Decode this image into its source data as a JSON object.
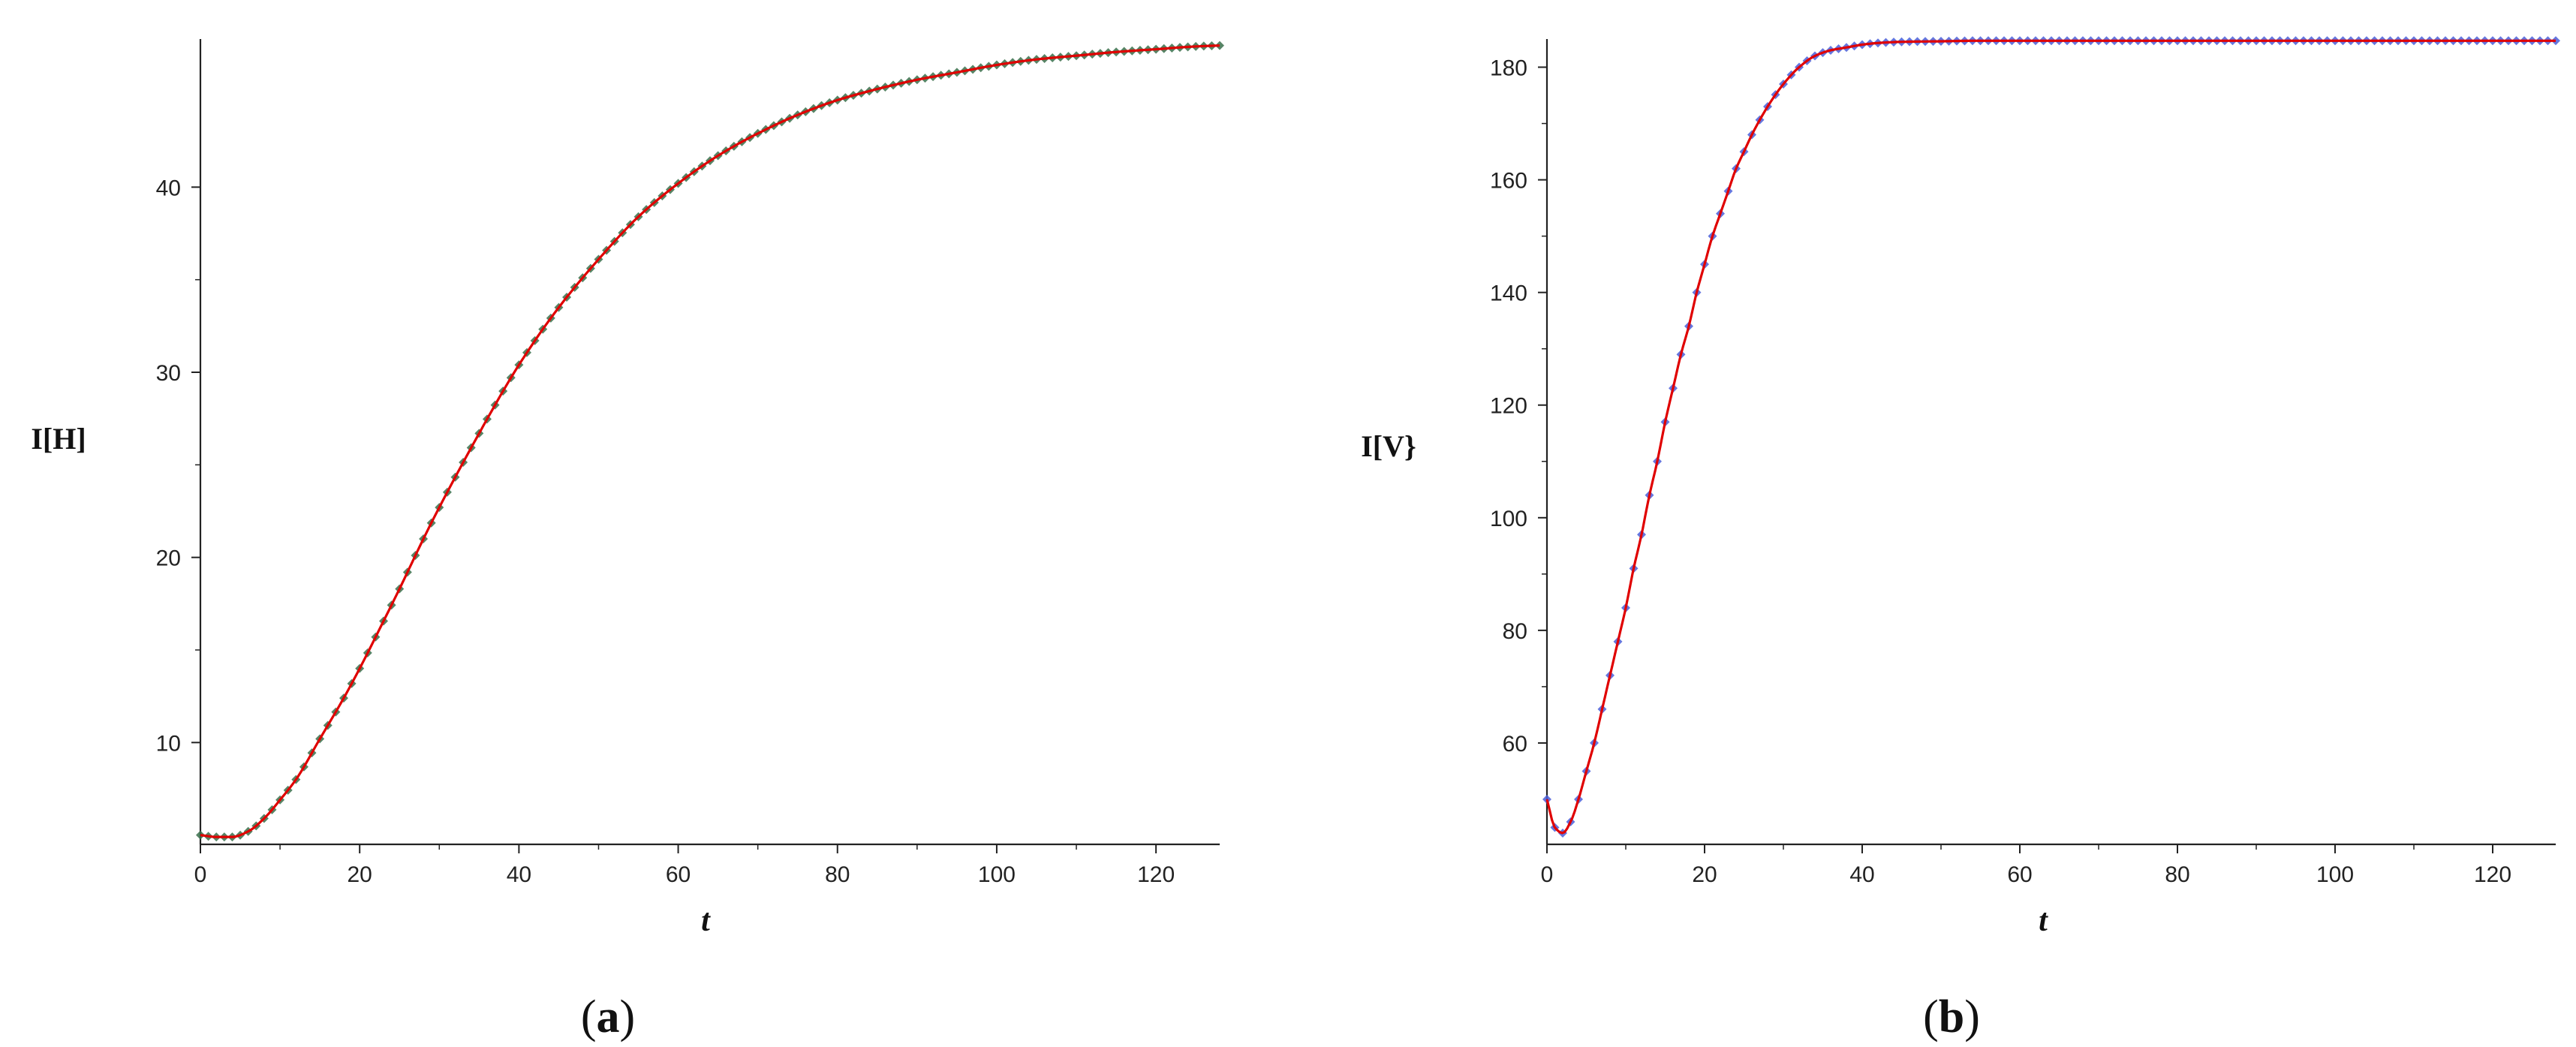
{
  "chart_data": [
    {
      "type": "line",
      "id": "a",
      "panel_label": {
        "open": "(",
        "letter": "a",
        "close": ")"
      },
      "xlabel": "t",
      "ylabel": "I[H]",
      "xlim": [
        0,
        128
      ],
      "ylim": [
        4.5,
        48
      ],
      "xticks": [
        0,
        20,
        40,
        60,
        80,
        100,
        120
      ],
      "yticks": [
        10,
        20,
        30,
        40
      ],
      "colors": {
        "line": "#e00000",
        "marker": "#3a6e4a"
      },
      "series": [
        {
          "x": [
            0,
            2,
            4,
            6,
            8,
            10,
            12,
            15,
            18,
            20,
            22,
            25,
            28,
            30,
            35,
            40,
            45,
            50,
            55,
            60,
            65,
            70,
            75,
            80,
            85,
            90,
            95,
            100,
            105,
            110,
            115,
            120,
            125,
            128
          ],
          "y": [
            5.0,
            4.9,
            4.9,
            5.2,
            5.9,
            6.9,
            8.0,
            10.2,
            12.4,
            14.0,
            15.7,
            18.3,
            21.0,
            22.7,
            26.7,
            30.4,
            33.5,
            36.1,
            38.4,
            40.2,
            41.7,
            42.9,
            43.9,
            44.7,
            45.3,
            45.8,
            46.2,
            46.6,
            46.9,
            47.1,
            47.3,
            47.45,
            47.6,
            47.65
          ]
        }
      ]
    },
    {
      "type": "line",
      "id": "b",
      "panel_label": {
        "open": "(",
        "letter": "b",
        "close": ")"
      },
      "xlabel": "t",
      "ylabel": "I[V}",
      "xlim": [
        0,
        128
      ],
      "ylim": [
        42,
        185
      ],
      "xticks": [
        0,
        20,
        40,
        60,
        80,
        100,
        120
      ],
      "yticks": [
        60,
        80,
        100,
        120,
        140,
        160,
        180
      ],
      "colors": {
        "line": "#e00000",
        "marker": "#4a5ed8"
      },
      "series": [
        {
          "x": [
            0,
            1,
            2,
            3,
            4,
            5,
            6,
            7,
            8,
            9,
            10,
            11,
            12,
            13,
            14,
            15,
            16,
            17,
            18,
            19,
            20,
            21,
            22,
            23,
            24,
            25,
            26,
            28,
            30,
            32,
            34,
            36,
            38,
            40,
            42,
            45,
            50,
            55,
            60,
            70,
            80,
            90,
            100,
            110,
            120,
            128
          ],
          "y": [
            50,
            45,
            44,
            46,
            50,
            55,
            60,
            66,
            72,
            78,
            84,
            91,
            97,
            104,
            110,
            117,
            123,
            129,
            134,
            140,
            145,
            150,
            154,
            158,
            162,
            165,
            168,
            173,
            177,
            180,
            182,
            183,
            183.5,
            184,
            184.3,
            184.5,
            184.6,
            184.7,
            184.7,
            184.7,
            184.7,
            184.7,
            184.7,
            184.7,
            184.7,
            184.7
          ]
        }
      ]
    }
  ]
}
